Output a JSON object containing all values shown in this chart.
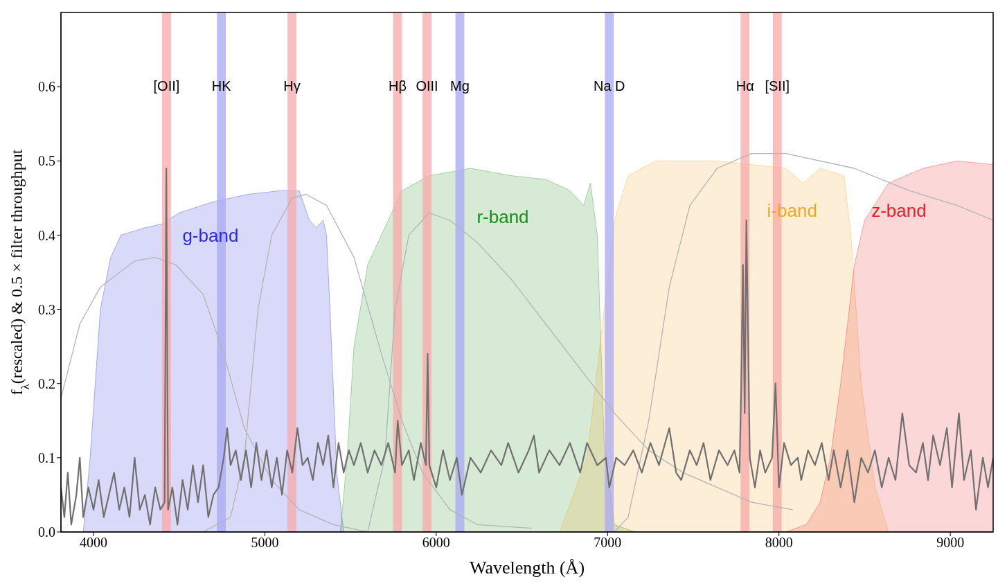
{
  "chart_data": {
    "type": "area",
    "xlabel": "Wavelength (Å)",
    "ylabel": "f$_{λ}$(rescaled) & 0.5 × filter throughput",
    "xlim": [
      3810,
      9250
    ],
    "ylim": [
      0,
      0.7
    ],
    "xticks": [
      4000,
      5000,
      6000,
      7000,
      8000,
      9000
    ],
    "yticks": [
      {
        "value": 0,
        "label": "0.0"
      },
      0.1,
      0.2,
      0.3,
      0.4,
      0.5,
      0.6
    ],
    "bands": [
      {
        "axis": "x",
        "from": 4400,
        "to": 4452,
        "label": "[OII]",
        "color": "#f7a8a8"
      },
      {
        "axis": "x",
        "from": 4720,
        "to": 4772,
        "label": "HK",
        "color": "#a8a8f4"
      },
      {
        "axis": "x",
        "from": 5132,
        "to": 5184,
        "label": "Hγ",
        "color": "#f7a8a8"
      },
      {
        "axis": "x",
        "from": 5748,
        "to": 5800,
        "label": "Hβ",
        "color": "#f7a8a8"
      },
      {
        "axis": "x",
        "from": 5920,
        "to": 5972,
        "label": "OIII",
        "color": "#f7a8a8"
      },
      {
        "axis": "x",
        "from": 6112,
        "to": 6164,
        "label": "Mg",
        "color": "#a8a8f4"
      },
      {
        "axis": "x",
        "from": 6984,
        "to": 7036,
        "label": "Na D",
        "color": "#a8a8f4"
      },
      {
        "axis": "x",
        "from": 7776,
        "to": 7828,
        "label": "Hα",
        "color": "#f7a8a8"
      },
      {
        "axis": "x",
        "from": 7964,
        "to": 8016,
        "label": "[SII]",
        "color": "#f7a8a8"
      }
    ],
    "series": [
      {
        "name": "g-band",
        "color": "#2a2ae0",
        "x": [
          3940,
          3980,
          4040,
          4100,
          4160,
          4300,
          4400,
          4500,
          4700,
          4900,
          5100,
          5200,
          5260,
          5300,
          5340,
          5360,
          5380,
          5420,
          5460
        ],
        "values": [
          0,
          0.1,
          0.3,
          0.37,
          0.4,
          0.41,
          0.415,
          0.43,
          0.445,
          0.455,
          0.46,
          0.46,
          0.42,
          0.41,
          0.42,
          0.4,
          0.3,
          0.08,
          0
        ]
      },
      {
        "name": "r-band",
        "color": "#1a8c1a",
        "x": [
          5440,
          5480,
          5520,
          5600,
          5680,
          5800,
          5960,
          6200,
          6440,
          6640,
          6780,
          6860,
          6900,
          6940,
          6980,
          7040,
          7160
        ],
        "values": [
          0,
          0.1,
          0.25,
          0.36,
          0.4,
          0.46,
          0.48,
          0.49,
          0.48,
          0.475,
          0.46,
          0.44,
          0.47,
          0.4,
          0.12,
          0.01,
          0
        ]
      },
      {
        "name": "i-band",
        "color": "#f5a623",
        "x": [
          6720,
          6880,
          6980,
          7040,
          7120,
          7280,
          7640,
          8040,
          8140,
          8240,
          8380,
          8420,
          8480,
          8560,
          8640
        ],
        "values": [
          0,
          0.1,
          0.3,
          0.42,
          0.48,
          0.5,
          0.5,
          0.49,
          0.47,
          0.49,
          0.48,
          0.4,
          0.2,
          0.06,
          0
        ]
      },
      {
        "name": "z-band",
        "color": "#e82020",
        "x": [
          8040,
          8160,
          8240,
          8300,
          8360,
          8440,
          8500,
          8640,
          8840,
          9040,
          9250
        ],
        "values": [
          0,
          0.01,
          0.04,
          0.1,
          0.2,
          0.36,
          0.42,
          0.47,
          0.49,
          0.5,
          0.495
        ]
      },
      {
        "type": "line",
        "color": "#b4b4b4",
        "x": [
          3810,
          3920,
          4040,
          4240,
          4360,
          4480,
          4640,
          4760,
          4880,
          5040,
          5200,
          5400,
          5600
        ],
        "values": [
          0.18,
          0.28,
          0.33,
          0.365,
          0.37,
          0.36,
          0.32,
          0.24,
          0.14,
          0.07,
          0.03,
          0.01,
          0
        ]
      },
      {
        "type": "line",
        "color": "#b4b4b4",
        "x": [
          4640,
          4800,
          4880,
          4960,
          5040,
          5160,
          5240,
          5360,
          5520,
          5680,
          5800,
          5920,
          6080,
          6240,
          6560
        ],
        "values": [
          0,
          0.02,
          0.1,
          0.3,
          0.4,
          0.45,
          0.455,
          0.44,
          0.37,
          0.24,
          0.15,
          0.08,
          0.03,
          0.01,
          0.005
        ]
      },
      {
        "type": "line",
        "color": "#b4b4b4",
        "x": [
          5600,
          5700,
          5760,
          5840,
          5960,
          6080,
          6240,
          6440,
          6640,
          6840,
          7040,
          7240,
          7440,
          7640,
          7840,
          8080
        ],
        "values": [
          0,
          0.1,
          0.3,
          0.4,
          0.43,
          0.42,
          0.39,
          0.34,
          0.28,
          0.22,
          0.16,
          0.11,
          0.08,
          0.06,
          0.04,
          0.03
        ]
      },
      {
        "type": "line",
        "color": "#b4b4b4",
        "x": [
          7040,
          7120,
          7240,
          7360,
          7480,
          7640,
          7840,
          8040,
          8440,
          8760,
          9040,
          9250
        ],
        "values": [
          0,
          0.02,
          0.15,
          0.33,
          0.44,
          0.49,
          0.51,
          0.51,
          0.49,
          0.46,
          0.44,
          0.42
        ]
      },
      {
        "type": "line",
        "color": "#707070",
        "x": [
          3810,
          3830,
          3850,
          3870,
          3900,
          3920,
          3940,
          3970,
          4000,
          4030,
          4060,
          4090,
          4120,
          4150,
          4180,
          4210,
          4240,
          4270,
          4300,
          4330,
          4360,
          4390,
          4415,
          4425,
          4435,
          4460,
          4490,
          4520,
          4550,
          4580,
          4610,
          4640,
          4670,
          4700,
          4730,
          4760,
          4780,
          4800,
          4830,
          4860,
          4890,
          4920,
          4950,
          4980,
          5010,
          5040,
          5070,
          5100,
          5130,
          5160,
          5190,
          5220,
          5250,
          5280,
          5310,
          5340,
          5370,
          5400,
          5430,
          5460,
          5490,
          5520,
          5560,
          5600,
          5640,
          5680,
          5720,
          5760,
          5775,
          5800,
          5840,
          5870,
          5910,
          5940,
          5950,
          5960,
          6000,
          6040,
          6080,
          6120,
          6150,
          6200,
          6260,
          6320,
          6380,
          6420,
          6480,
          6540,
          6570,
          6600,
          6660,
          6720,
          6780,
          6840,
          6880,
          6940,
          6990,
          7010,
          7050,
          7100,
          7150,
          7200,
          7250,
          7300,
          7360,
          7400,
          7430,
          7480,
          7520,
          7560,
          7600,
          7650,
          7700,
          7740,
          7770,
          7780,
          7790,
          7800,
          7810,
          7830,
          7860,
          7890,
          7920,
          7960,
          7980,
          8000,
          8030,
          8070,
          8110,
          8130,
          8170,
          8210,
          8250,
          8290,
          8320,
          8360,
          8400,
          8440,
          8480,
          8520,
          8560,
          8600,
          8640,
          8680,
          8720,
          8760,
          8800,
          8840,
          8870,
          8900,
          8940,
          8980,
          9010,
          9050,
          9080,
          9120,
          9150,
          9190,
          9220,
          9250
        ],
        "values": [
          0.06,
          0.02,
          0.08,
          0.01,
          0.05,
          0.1,
          0.02,
          0.06,
          0.03,
          0.07,
          0.02,
          0.05,
          0.08,
          0.03,
          0.06,
          0.02,
          0.1,
          0.03,
          0.05,
          0.01,
          0.06,
          0.03,
          0.04,
          0.49,
          0.03,
          0.06,
          0.01,
          0.07,
          0.03,
          0.09,
          0.04,
          0.09,
          0.02,
          0.05,
          0.06,
          0.1,
          0.14,
          0.09,
          0.11,
          0.07,
          0.11,
          0.06,
          0.12,
          0.07,
          0.11,
          0.06,
          0.1,
          0.05,
          0.11,
          0.08,
          0.14,
          0.09,
          0.1,
          0.07,
          0.12,
          0.09,
          0.13,
          0.06,
          0.12,
          0.08,
          0.11,
          0.09,
          0.12,
          0.08,
          0.11,
          0.09,
          0.12,
          0.08,
          0.15,
          0.09,
          0.11,
          0.07,
          0.12,
          0.09,
          0.24,
          0.09,
          0.06,
          0.11,
          0.07,
          0.1,
          0.05,
          0.1,
          0.08,
          0.11,
          0.09,
          0.12,
          0.08,
          0.11,
          0.13,
          0.08,
          0.11,
          0.09,
          0.12,
          0.08,
          0.12,
          0.09,
          0.1,
          0.06,
          0.1,
          0.09,
          0.11,
          0.08,
          0.12,
          0.09,
          0.14,
          0.08,
          0.07,
          0.11,
          0.09,
          0.12,
          0.07,
          0.11,
          0.09,
          0.11,
          0.08,
          0.2,
          0.36,
          0.16,
          0.42,
          0.1,
          0.06,
          0.11,
          0.08,
          0.1,
          0.2,
          0.06,
          0.12,
          0.09,
          0.1,
          0.07,
          0.11,
          0.09,
          0.12,
          0.07,
          0.11,
          0.06,
          0.11,
          0.04,
          0.1,
          0.08,
          0.11,
          0.06,
          0.1,
          0.07,
          0.16,
          0.09,
          0.08,
          0.12,
          0.07,
          0.13,
          0.09,
          0.14,
          0.06,
          0.16,
          0.07,
          0.11,
          0.03,
          0.1,
          0.06,
          0.1
        ]
      }
    ]
  }
}
